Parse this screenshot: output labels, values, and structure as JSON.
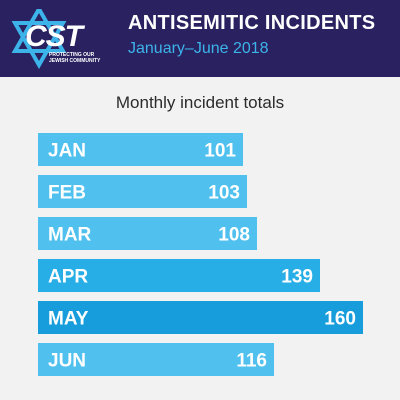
{
  "header": {
    "logo_text": "CST",
    "logo_tagline": "PROTECTING OUR\nJEWISH COMMUNITY",
    "title": "ANTISEMITIC INCIDENTS",
    "subtitle": "January–June 2018"
  },
  "colors": {
    "header_bg": "#2a2160",
    "subtitle": "#3cb4ea",
    "background": "#f2f2f2",
    "bar_light": "#50c0ee",
    "bar_medium": "#28aee6",
    "bar_dark": "#179ddb"
  },
  "chart_data": {
    "type": "bar",
    "orientation": "horizontal",
    "title": "Monthly incident totals",
    "categories": [
      "JAN",
      "FEB",
      "MAR",
      "APR",
      "MAY",
      "JUN"
    ],
    "values": [
      101,
      103,
      108,
      139,
      160,
      116
    ],
    "data_labels": [
      "101",
      "103",
      "108",
      "139",
      "160",
      "116"
    ],
    "xlim": [
      0,
      160
    ],
    "grid": false,
    "legend": "none"
  }
}
